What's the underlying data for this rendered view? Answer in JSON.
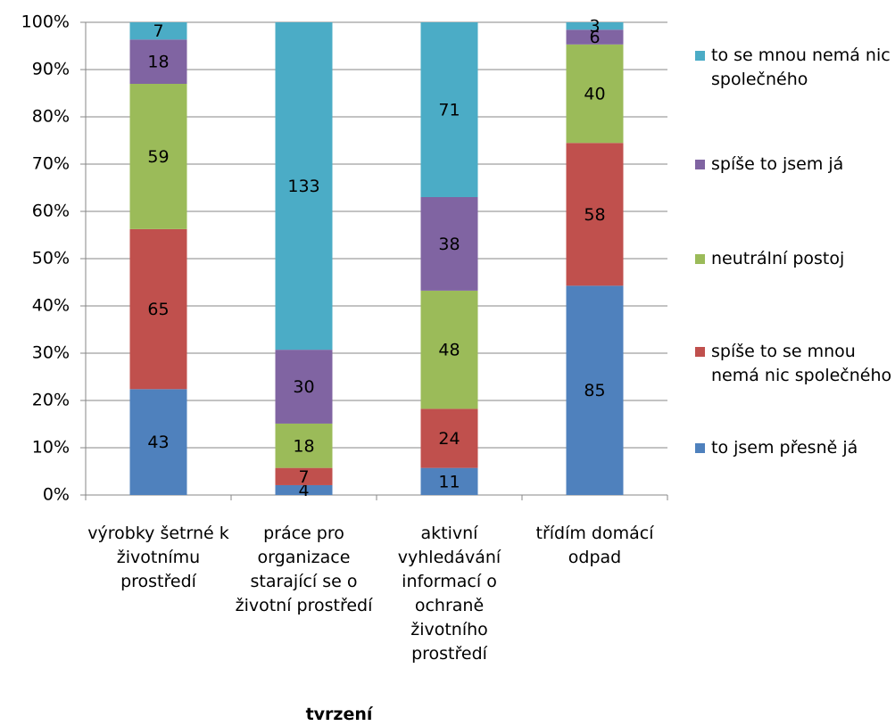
{
  "chart_data": {
    "type": "bar",
    "stacked": "percent",
    "x_label": "tvrzení",
    "categories": [
      "výrobky šetrné k životnímu prostředí",
      "práce pro organizace starající se o životní prostředí",
      "aktivní vyhledávání informací o ochraně životního prostředí",
      "třídím domácí odpad"
    ],
    "series": [
      {
        "name": "to jsem přesně já",
        "color": "#4f81bd",
        "values": [
          43,
          4,
          11,
          85
        ]
      },
      {
        "name": "spíše to se mnou nemá nic společného",
        "color": "#c0504d",
        "values": [
          65,
          7,
          24,
          58
        ]
      },
      {
        "name": "neutrální postoj",
        "color": "#9bbb59",
        "values": [
          59,
          18,
          48,
          40
        ]
      },
      {
        "name": "spíše to jsem já",
        "color": "#8064a2",
        "values": [
          18,
          30,
          38,
          6
        ]
      },
      {
        "name": "to se mnou nemá nic společného",
        "color": "#4bacc6",
        "values": [
          7,
          133,
          71,
          3
        ]
      }
    ],
    "ylim": [
      0,
      100
    ],
    "yticks": [
      {
        "value": 0,
        "label": "0%"
      },
      {
        "value": 10,
        "label": "10%"
      },
      {
        "value": 20,
        "label": "20%"
      },
      {
        "value": 30,
        "label": "30%"
      },
      {
        "value": 40,
        "label": "40%"
      },
      {
        "value": 50,
        "label": "50%"
      },
      {
        "value": 60,
        "label": "60%"
      },
      {
        "value": 70,
        "label": "70%"
      },
      {
        "value": 80,
        "label": "80%"
      },
      {
        "value": 90,
        "label": "90%"
      },
      {
        "value": 100,
        "label": "100%"
      }
    ],
    "grid": true,
    "legend": "right"
  }
}
